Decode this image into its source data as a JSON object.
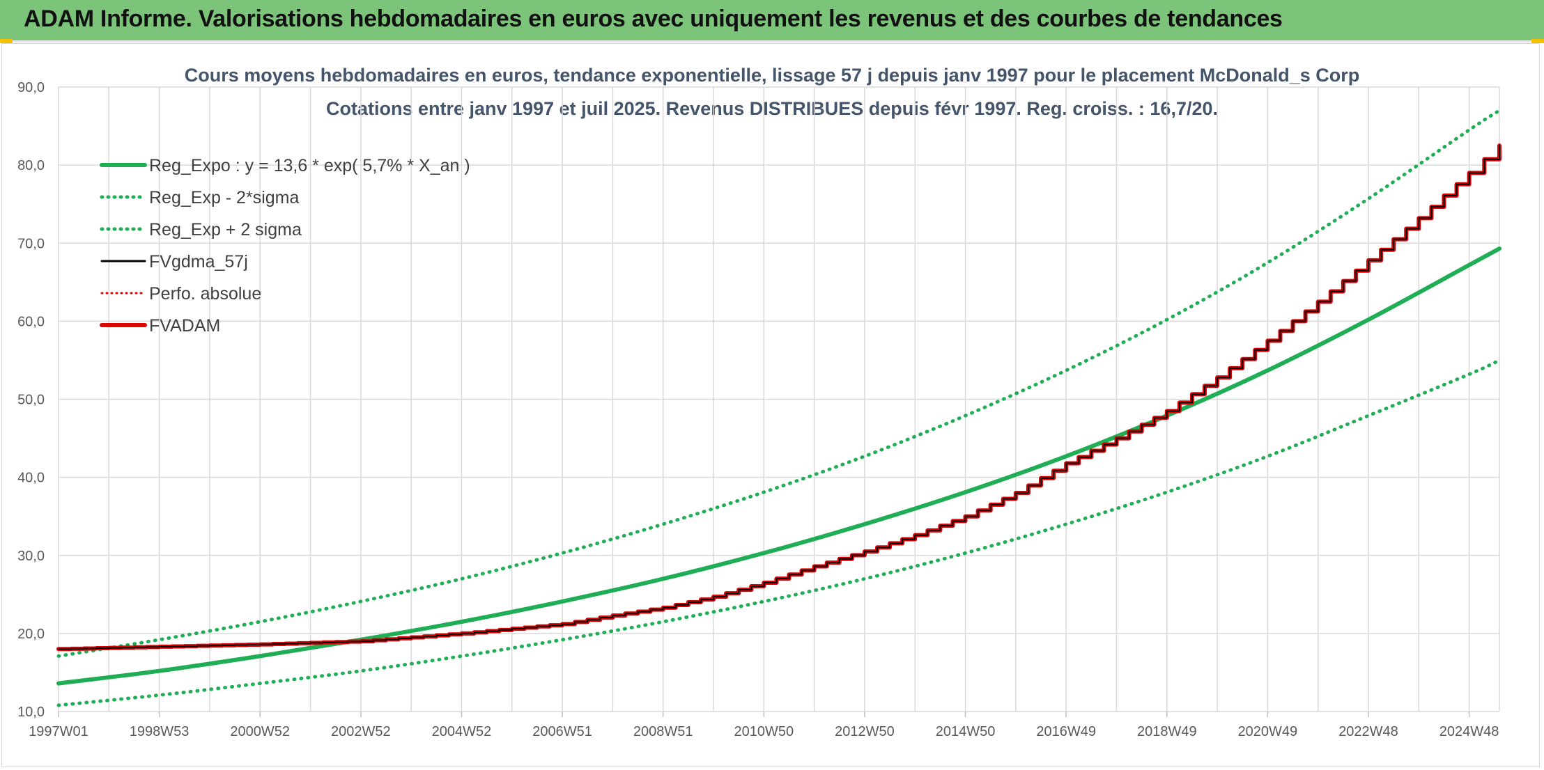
{
  "header": {
    "title": "ADAM Informe. Valorisations hebdomadaires en euros avec uniquement les revenus et des courbes de tendances"
  },
  "colors": {
    "banner": "#7cc47a",
    "trend_green": "#1fad55",
    "dotted_green": "#1fad55",
    "fvadam_red": "#e10000",
    "fvgdma_black": "#000000",
    "grid": "#d9d9d9"
  },
  "chart_data": {
    "type": "line",
    "title": "Cours moyens hebdomadaires en euros, tendance exponentielle, lissage 57 j depuis janv 1997 pour le placement McDonald_s Corp",
    "subtitle": "Cotations entre janv 1997 et juil 2025. Revenus DISTRIBUES depuis févr 1997. Reg. croiss. : 16,7/20.",
    "xlabel": "",
    "ylabel": "",
    "ylim": [
      10,
      90
    ],
    "yticks": [
      "10,0",
      "20,0",
      "30,0",
      "40,0",
      "50,0",
      "60,0",
      "70,0",
      "80,0",
      "90,0"
    ],
    "xlim": [
      1997.0,
      2025.6
    ],
    "xticks": [
      {
        "label": "1997W01",
        "x": 1997.0
      },
      {
        "label": "1998W53",
        "x": 1999.0
      },
      {
        "label": "2000W52",
        "x": 2001.0
      },
      {
        "label": "2002W52",
        "x": 2003.0
      },
      {
        "label": "2004W52",
        "x": 2005.0
      },
      {
        "label": "2006W51",
        "x": 2007.0
      },
      {
        "label": "2008W51",
        "x": 2009.0
      },
      {
        "label": "2010W50",
        "x": 2011.0
      },
      {
        "label": "2012W50",
        "x": 2013.0
      },
      {
        "label": "2014W50",
        "x": 2015.0
      },
      {
        "label": "2016W49",
        "x": 2017.0
      },
      {
        "label": "2018W49",
        "x": 2019.0
      },
      {
        "label": "2020W49",
        "x": 2021.0
      },
      {
        "label": "2022W48",
        "x": 2023.0
      },
      {
        "label": "2024W48",
        "x": 2025.0
      }
    ],
    "grid": true,
    "legend_position": "top-left",
    "series": [
      {
        "name": "Reg_Expo : y = 13,6 * exp( 5,7% *  X_an )",
        "style": "solid-thick",
        "color": "#1fad55",
        "x": [
          1997.0,
          1999.0,
          2001.0,
          2003.0,
          2005.0,
          2007.0,
          2009.0,
          2011.0,
          2013.0,
          2015.0,
          2017.0,
          2019.0,
          2021.0,
          2023.0,
          2025.0,
          2025.6
        ],
        "y": [
          13.6,
          15.2,
          17.1,
          19.2,
          21.5,
          24.1,
          27.0,
          30.3,
          34.0,
          38.1,
          42.7,
          47.9,
          53.7,
          60.2,
          67.2,
          69.3
        ]
      },
      {
        "name": "Reg_Exp - 2*sigma",
        "style": "dotted",
        "color": "#1fad55",
        "x": [
          1997.0,
          1999.0,
          2001.0,
          2003.0,
          2005.0,
          2007.0,
          2009.0,
          2011.0,
          2013.0,
          2015.0,
          2017.0,
          2019.0,
          2021.0,
          2023.0,
          2025.0,
          2025.6
        ],
        "y": [
          10.8,
          12.1,
          13.6,
          15.2,
          17.1,
          19.2,
          21.5,
          24.1,
          27.0,
          30.3,
          34.0,
          38.1,
          42.7,
          47.9,
          53.2,
          55.0
        ]
      },
      {
        "name": "Reg_Exp + 2 sigma",
        "style": "dotted",
        "color": "#1fad55",
        "x": [
          1997.0,
          1999.0,
          2001.0,
          2003.0,
          2005.0,
          2007.0,
          2009.0,
          2011.0,
          2013.0,
          2015.0,
          2017.0,
          2019.0,
          2021.0,
          2023.0,
          2025.0,
          2025.6
        ],
        "y": [
          17.1,
          19.2,
          21.5,
          24.1,
          27.0,
          30.3,
          34.0,
          38.1,
          42.7,
          47.9,
          53.7,
          60.2,
          67.5,
          75.7,
          84.5,
          87.0
        ]
      },
      {
        "name": "FVgdma_57j",
        "style": "solid",
        "color": "#000000",
        "x": [
          1997.0,
          1999.0,
          2001.0,
          2003.0,
          2004.0,
          2005.0,
          2006.0,
          2007.0,
          2008.0,
          2009.0,
          2010.0,
          2011.0,
          2012.0,
          2013.0,
          2014.0,
          2015.0,
          2016.0,
          2017.0,
          2018.0,
          2019.0,
          2020.0,
          2021.0,
          2022.0,
          2023.0,
          2024.0,
          2025.0,
          2025.6
        ],
        "y": [
          18.0,
          18.3,
          18.6,
          19.0,
          19.5,
          20.0,
          20.6,
          21.2,
          22.3,
          23.3,
          24.7,
          26.5,
          28.6,
          30.5,
          32.6,
          35.0,
          38.0,
          41.8,
          45.0,
          48.5,
          52.8,
          57.5,
          62.5,
          67.8,
          73.2,
          79.0,
          82.5
        ]
      },
      {
        "name": "Perfo. absolue",
        "style": "dotted",
        "color": "#e10000",
        "x": [],
        "y": []
      },
      {
        "name": "FVADAM",
        "style": "solid-thick",
        "color": "#e10000",
        "x": [
          1997.0,
          1999.0,
          2001.0,
          2003.0,
          2004.0,
          2005.0,
          2006.0,
          2007.0,
          2008.0,
          2009.0,
          2010.0,
          2011.0,
          2012.0,
          2013.0,
          2014.0,
          2015.0,
          2016.0,
          2017.0,
          2018.0,
          2019.0,
          2020.0,
          2021.0,
          2022.0,
          2023.0,
          2024.0,
          2025.0,
          2025.6
        ],
        "y": [
          18.0,
          18.3,
          18.6,
          19.0,
          19.5,
          20.0,
          20.6,
          21.2,
          22.3,
          23.3,
          24.7,
          26.5,
          28.6,
          30.5,
          32.6,
          35.0,
          38.0,
          41.8,
          45.0,
          48.5,
          52.8,
          57.5,
          62.5,
          67.8,
          73.2,
          79.0,
          82.5
        ]
      }
    ]
  }
}
